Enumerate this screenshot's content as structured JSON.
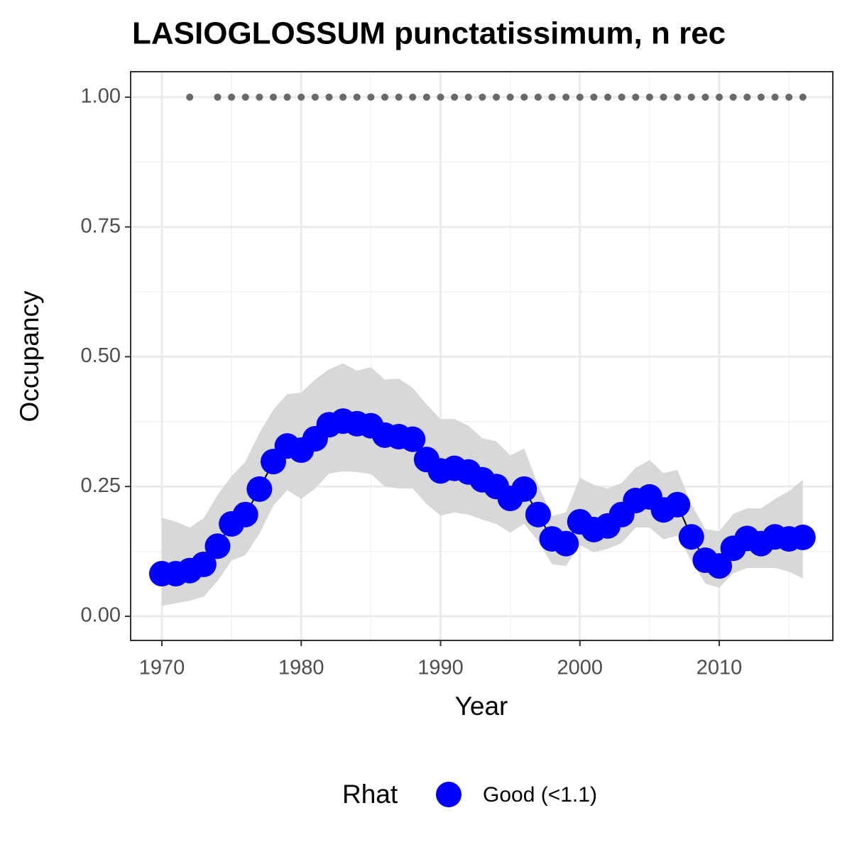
{
  "chart_data": {
    "type": "line",
    "title": "LASIOGLOSSUM punctatissimum, n rec",
    "x_label": "Year",
    "y_label": "Occupancy",
    "x": [
      1970,
      1971,
      1972,
      1973,
      1974,
      1975,
      1976,
      1977,
      1978,
      1979,
      1980,
      1981,
      1982,
      1983,
      1984,
      1985,
      1986,
      1987,
      1988,
      1989,
      1990,
      1991,
      1992,
      1993,
      1994,
      1995,
      1996,
      1997,
      1998,
      1999,
      2000,
      2001,
      2002,
      2003,
      2004,
      2005,
      2006,
      2007,
      2008,
      2009,
      2010,
      2011,
      2012,
      2013,
      2014,
      2015,
      2016
    ],
    "series": [
      {
        "name": "Good (<1.1)",
        "color": "#0000ff",
        "values": [
          0.082,
          0.082,
          0.088,
          0.1,
          0.135,
          0.178,
          0.196,
          0.245,
          0.298,
          0.328,
          0.32,
          0.342,
          0.369,
          0.376,
          0.371,
          0.367,
          0.349,
          0.346,
          0.341,
          0.302,
          0.28,
          0.285,
          0.278,
          0.263,
          0.25,
          0.227,
          0.245,
          0.196,
          0.149,
          0.14,
          0.182,
          0.167,
          0.174,
          0.196,
          0.223,
          0.23,
          0.205,
          0.215,
          0.153,
          0.108,
          0.097,
          0.131,
          0.15,
          0.14,
          0.153,
          0.149,
          0.152
        ]
      }
    ],
    "ribbon": {
      "color": "#d6d6d6",
      "upper": [
        0.19,
        0.182,
        0.171,
        0.189,
        0.234,
        0.27,
        0.298,
        0.353,
        0.398,
        0.428,
        0.431,
        0.456,
        0.476,
        0.487,
        0.473,
        0.48,
        0.456,
        0.458,
        0.44,
        0.408,
        0.38,
        0.38,
        0.367,
        0.343,
        0.337,
        0.31,
        0.323,
        0.253,
        0.193,
        0.2,
        0.267,
        0.253,
        0.246,
        0.257,
        0.286,
        0.301,
        0.276,
        0.282,
        0.216,
        0.168,
        0.164,
        0.197,
        0.208,
        0.208,
        0.226,
        0.241,
        0.263
      ],
      "lower": [
        0.02,
        0.025,
        0.03,
        0.038,
        0.068,
        0.107,
        0.118,
        0.159,
        0.213,
        0.243,
        0.226,
        0.246,
        0.275,
        0.279,
        0.278,
        0.274,
        0.25,
        0.246,
        0.246,
        0.216,
        0.194,
        0.2,
        0.196,
        0.186,
        0.178,
        0.161,
        0.178,
        0.145,
        0.1,
        0.097,
        0.137,
        0.123,
        0.13,
        0.141,
        0.171,
        0.171,
        0.148,
        0.155,
        0.107,
        0.063,
        0.055,
        0.083,
        0.093,
        0.093,
        0.093,
        0.086,
        0.073
      ]
    },
    "records": {
      "color": "#696969",
      "x": [
        1972,
        1974,
        1975,
        1976,
        1977,
        1978,
        1979,
        1980,
        1981,
        1982,
        1983,
        1984,
        1985,
        1986,
        1987,
        1988,
        1989,
        1990,
        1991,
        1992,
        1993,
        1994,
        1995,
        1996,
        1997,
        1998,
        1999,
        2000,
        2001,
        2002,
        2003,
        2004,
        2005,
        2006,
        2007,
        2008,
        2009,
        2010,
        2011,
        2012,
        2013,
        2014,
        2015,
        2016
      ],
      "values": [
        1,
        1,
        1,
        1,
        1,
        1,
        1,
        1,
        1,
        1,
        1,
        1,
        1,
        1,
        1,
        1,
        1,
        1,
        1,
        1,
        1,
        1,
        1,
        1,
        1,
        1,
        1,
        1,
        1,
        1,
        1,
        1,
        1,
        1,
        1,
        1,
        1,
        1,
        1,
        1,
        1,
        1,
        1,
        1
      ]
    },
    "xlim": [
      1967.76,
      2018.15
    ],
    "ylim": [
      -0.0465,
      1.049
    ],
    "xticks": [
      1970,
      1980,
      1990,
      2000,
      2010
    ],
    "yticks": [
      {
        "value": 0,
        "label": "0.00"
      },
      {
        "value": 0.25,
        "label": "0.25"
      },
      {
        "value": 0.5,
        "label": "0.50"
      },
      {
        "value": 0.75,
        "label": "0.75"
      },
      {
        "value": 1,
        "label": "1.00"
      }
    ],
    "x_minor_grid": [
      1975,
      1985,
      1995,
      2005,
      2015
    ],
    "y_minor_grid": [
      0.125,
      0.375,
      0.625,
      0.875
    ],
    "grid": true,
    "legend_title": "Rhat",
    "legend_position": "bottom"
  }
}
